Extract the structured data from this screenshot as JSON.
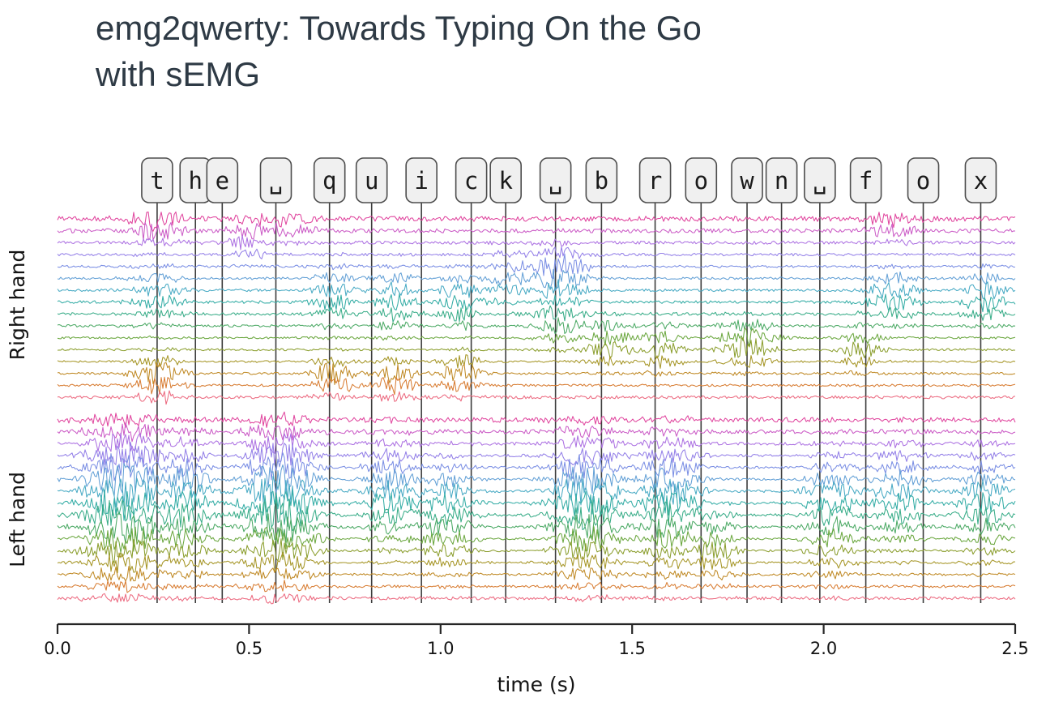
{
  "page": {
    "title_lines": [
      "emg2qwerty: Towards Typing On the Go",
      "with sEMG"
    ]
  },
  "chart_data": {
    "type": "line",
    "title": "emg2qwerty: Towards Typing On the Go with sEMG",
    "xlabel": "time (s)",
    "xlim": [
      0.0,
      2.5
    ],
    "x_ticks": [
      "0.0",
      "0.5",
      "1.0",
      "1.5",
      "2.0",
      "2.5"
    ],
    "grid": false,
    "channels_per_band": 16,
    "palette": [
      "#e0459e",
      "#cb5bc6",
      "#ad72e2",
      "#9480e8",
      "#7b8fe4",
      "#63a0d6",
      "#48aac4",
      "#35ada6",
      "#3aad89",
      "#4daa66",
      "#6ba73f",
      "#8b9e2e",
      "#a69627",
      "#c08a26",
      "#d87d33",
      "#ec6a80"
    ],
    "keystroke_line_color": "#3c3c3c",
    "key_box_fill": "#f0f0f0",
    "key_box_border": "#4d4d4d",
    "axis_color": "#262626",
    "text_color": "#141414",
    "keystrokes": [
      {
        "key": "t",
        "time": 0.26
      },
      {
        "key": "h",
        "time": 0.36
      },
      {
        "key": "e",
        "time": 0.43
      },
      {
        "key": "␣",
        "time": 0.57
      },
      {
        "key": "q",
        "time": 0.71
      },
      {
        "key": "u",
        "time": 0.82
      },
      {
        "key": "i",
        "time": 0.95
      },
      {
        "key": "c",
        "time": 1.08
      },
      {
        "key": "k",
        "time": 1.17
      },
      {
        "key": "␣",
        "time": 1.3
      },
      {
        "key": "b",
        "time": 1.42
      },
      {
        "key": "r",
        "time": 1.56
      },
      {
        "key": "o",
        "time": 1.68
      },
      {
        "key": "w",
        "time": 1.8
      },
      {
        "key": "n",
        "time": 1.89
      },
      {
        "key": "␣",
        "time": 1.99
      },
      {
        "key": "f",
        "time": 2.11
      },
      {
        "key": "o",
        "time": 2.26
      },
      {
        "key": "x",
        "time": 2.41
      }
    ],
    "bands": [
      {
        "label": "Right hand",
        "channel_noise": [
          3.2,
          2.6,
          2.0,
          1.6,
          1.5,
          1.5,
          1.6,
          1.7,
          1.7,
          1.5,
          1.3,
          1.3,
          1.3,
          1.4,
          1.5,
          1.9
        ],
        "activity_bursts": [
          [
            0.26,
            0.5,
            1.2,
            14,
            0.05
          ],
          [
            0.26,
            13.5,
            1.3,
            16,
            0.045
          ],
          [
            0.26,
            6.5,
            1.8,
            9,
            0.05
          ],
          [
            0.5,
            1.5,
            1.5,
            10,
            0.04
          ],
          [
            0.6,
            0.5,
            1.0,
            11,
            0.05
          ],
          [
            0.72,
            6.5,
            1.8,
            11,
            0.04
          ],
          [
            0.72,
            13.5,
            1.2,
            15,
            0.04
          ],
          [
            0.88,
            7.0,
            1.8,
            11,
            0.04
          ],
          [
            0.88,
            13.5,
            1.2,
            13,
            0.04
          ],
          [
            1.05,
            7.0,
            1.5,
            13,
            0.04
          ],
          [
            1.05,
            13.0,
            1.2,
            12,
            0.04
          ],
          [
            1.17,
            5.0,
            1.5,
            10,
            0.04
          ],
          [
            1.31,
            4.5,
            1.5,
            17,
            0.05
          ],
          [
            1.31,
            8.5,
            1.5,
            11,
            0.05
          ],
          [
            1.44,
            10.5,
            1.3,
            13,
            0.04
          ],
          [
            1.58,
            11.0,
            1.3,
            13,
            0.04
          ],
          [
            1.8,
            10.5,
            1.3,
            16,
            0.05
          ],
          [
            2.1,
            11.0,
            1.3,
            11,
            0.04
          ],
          [
            2.18,
            6.5,
            1.5,
            12,
            0.05
          ],
          [
            2.18,
            0.5,
            1.0,
            10,
            0.05
          ],
          [
            2.42,
            6.5,
            1.5,
            13,
            0.04
          ]
        ]
      },
      {
        "label": "Left hand",
        "channel_noise": [
          3.0,
          2.5,
          1.9,
          1.6,
          1.5,
          1.5,
          1.6,
          1.7,
          1.7,
          1.5,
          1.3,
          1.3,
          1.3,
          1.4,
          1.5,
          1.9
        ],
        "activity_bursts": [
          [
            0.17,
            7.0,
            5.0,
            22,
            0.07
          ],
          [
            0.33,
            7.0,
            4.0,
            16,
            0.05
          ],
          [
            0.58,
            7.0,
            5.0,
            22,
            0.065
          ],
          [
            0.87,
            6.0,
            3.0,
            14,
            0.05
          ],
          [
            1.02,
            8.0,
            3.0,
            14,
            0.05
          ],
          [
            1.38,
            7.0,
            4.5,
            20,
            0.06
          ],
          [
            1.6,
            7.0,
            4.0,
            17,
            0.055
          ],
          [
            1.72,
            11.0,
            2.0,
            12,
            0.04
          ],
          [
            2.02,
            8.0,
            3.5,
            14,
            0.05
          ],
          [
            2.2,
            6.0,
            3.0,
            12,
            0.05
          ],
          [
            2.42,
            7.0,
            3.0,
            14,
            0.045
          ]
        ]
      }
    ]
  }
}
